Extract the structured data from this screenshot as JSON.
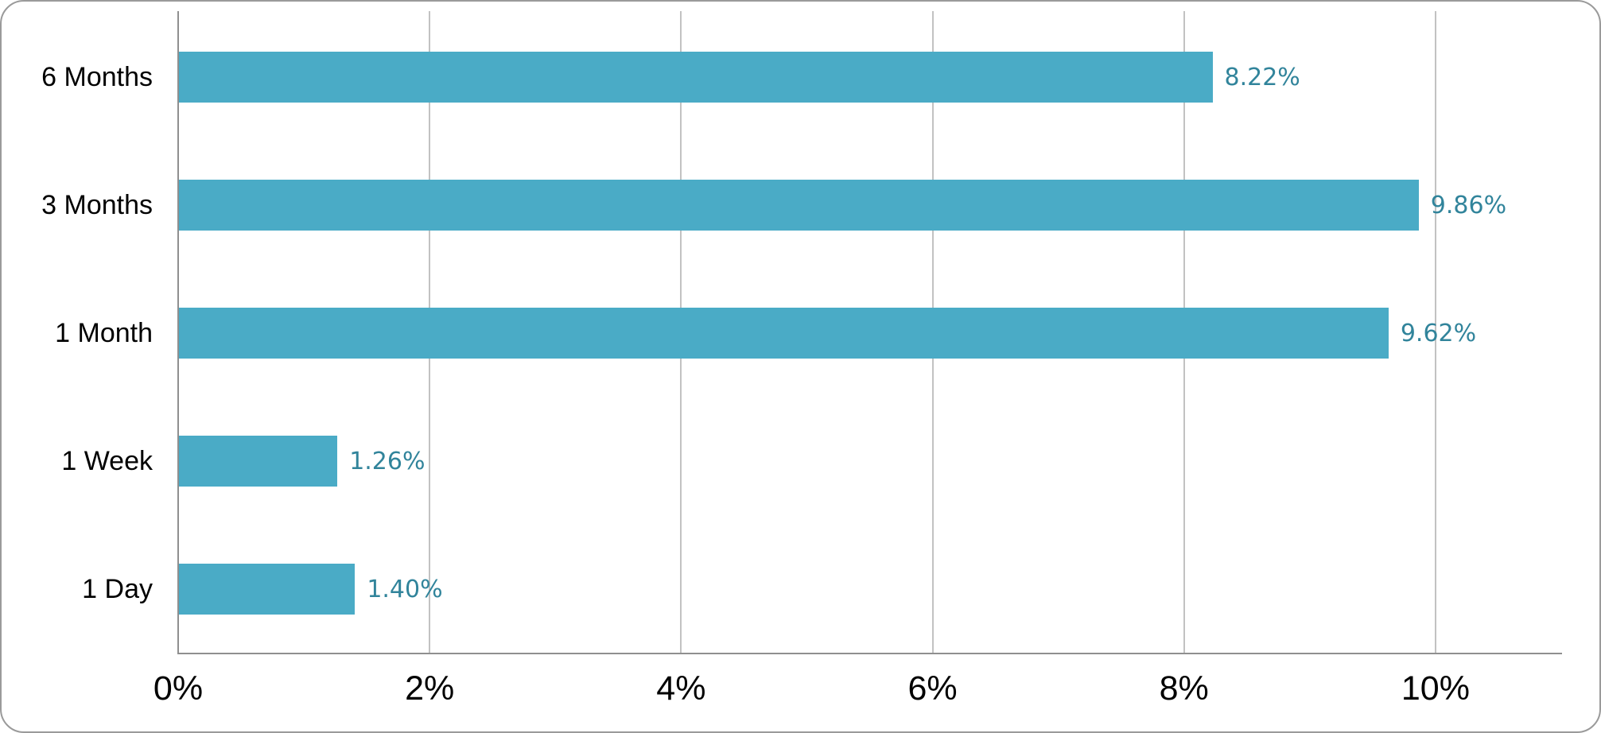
{
  "chart_data": {
    "type": "bar",
    "orientation": "horizontal",
    "title": "",
    "xlabel": "",
    "ylabel": "",
    "categories": [
      "6 Months",
      "3 Months",
      "1 Month",
      "1 Week",
      "1 Day"
    ],
    "values": [
      8.22,
      9.86,
      9.62,
      1.26,
      1.4
    ],
    "data_labels": [
      "8.22%",
      "9.86%",
      "9.62%",
      "1.26%",
      "1.40%"
    ],
    "x_axis": {
      "min": 0,
      "max": 11,
      "tick_values": [
        0,
        2,
        4,
        6,
        8,
        10
      ],
      "tick_labels": [
        "0%",
        "2%",
        "4%",
        "6%",
        "8%",
        "10%"
      ]
    },
    "grid": {
      "vertical_gridlines": true,
      "interval_pct": 2,
      "horizontal_gridlines": false
    },
    "legend": {
      "visible": false
    },
    "colors": {
      "bar": "#4aabc6",
      "data_label": "#31849b",
      "category_label": "#000000",
      "tick_label": "#000000",
      "gridline": "#c2c2c2",
      "axis_line": "#8f8f8f",
      "background": "#ffffff",
      "frame_border": "#9a9a9a"
    }
  }
}
